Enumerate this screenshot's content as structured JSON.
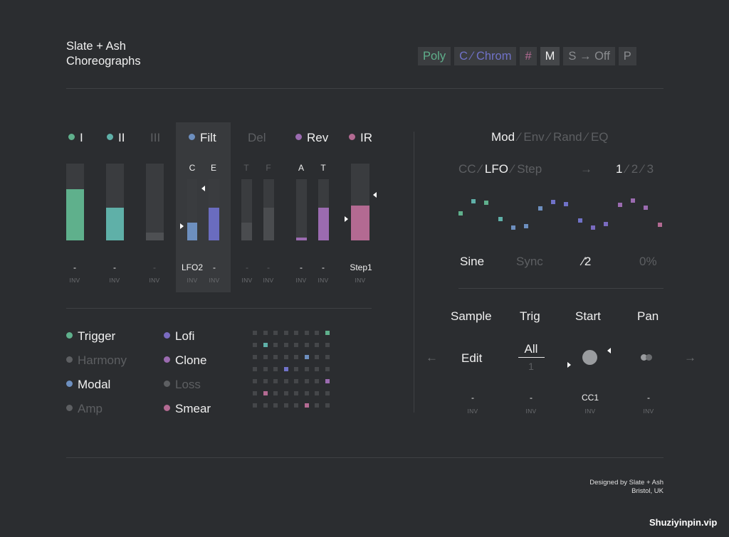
{
  "title": {
    "line1": "Slate + Ash",
    "line2": "Choreographs"
  },
  "toolbar": {
    "poly": "Poly",
    "chrom": "C ⁄ Chrom",
    "sharp": "#",
    "m": "M",
    "soff": "S → Off",
    "p": "P"
  },
  "tabs": [
    {
      "label": "I",
      "color": "#5fb08c"
    },
    {
      "label": "II",
      "color": "#5fb0a8"
    },
    {
      "label": "III"
    },
    {
      "label": "Filt",
      "color": "#6d8fbf"
    },
    {
      "label": "Del"
    },
    {
      "label": "Rev",
      "color": "#9b6bb0"
    },
    {
      "label": "IR",
      "color": "#b36a92"
    }
  ],
  "bars": {
    "sub": {
      "c": "C",
      "e": "E",
      "t": "T",
      "f": "F",
      "a": "A",
      "t2": "T"
    },
    "levels": {
      "b1": 0.67,
      "b2": 0.43,
      "b3": 0.1,
      "filt_c": 0.29,
      "filt_e": 0.54,
      "del_t": 0.29,
      "del_f": 0.54,
      "rev_a": 0.05,
      "rev_t": 0.54,
      "ir": 0.45
    },
    "values": [
      "-",
      "-",
      "-",
      "LFO2",
      "-",
      "-",
      "-",
      "-",
      "-",
      "Step1"
    ],
    "inv": "INV"
  },
  "fx": {
    "left": [
      {
        "label": "Trigger",
        "color": "#5fb08c"
      },
      {
        "label": "Harmony"
      },
      {
        "label": "Modal",
        "color": "#6d8fbf"
      },
      {
        "label": "Amp"
      }
    ],
    "right": [
      {
        "label": "Lofi",
        "color": "#7a6bc0"
      },
      {
        "label": "Clone",
        "color": "#9b6bb0"
      },
      {
        "label": "Loss"
      },
      {
        "label": "Smear",
        "color": "#b36a92"
      }
    ]
  },
  "mod": {
    "tabs": {
      "mod": "Mod",
      "env": "Env",
      "rand": "Rand",
      "eq": "EQ",
      "sep": "⁄"
    },
    "sources": {
      "cc": "CC",
      "lfo": "LFO",
      "step": "Step",
      "arrow": "→",
      "n1": "1",
      "n2": "2",
      "n3": "3",
      "sep": "⁄"
    },
    "params": {
      "shape": "Sine",
      "sync": "Sync",
      "div": "⁄2",
      "pct": "0%"
    }
  },
  "sample": {
    "headers": {
      "sample": "Sample",
      "trig": "Trig",
      "start": "Start",
      "pan": "Pan"
    },
    "edit": "Edit",
    "trig_top": "All",
    "trig_bottom": "1",
    "arrow_left": "←",
    "arrow_right": "→",
    "values": [
      "-",
      "-",
      "CC1",
      "-"
    ],
    "inv": "INV"
  },
  "footer": {
    "line1": "Designed by Slate + Ash",
    "line2": "Bristol, UK"
  },
  "watermark": "Shuziyinpin.vip",
  "colors": {
    "green": "#5fb08c",
    "teal": "#5fb0a8",
    "blue": "#6d8fbf",
    "indigo": "#6a6cbf",
    "purple": "#9b6bb0",
    "pink": "#b36a92"
  }
}
